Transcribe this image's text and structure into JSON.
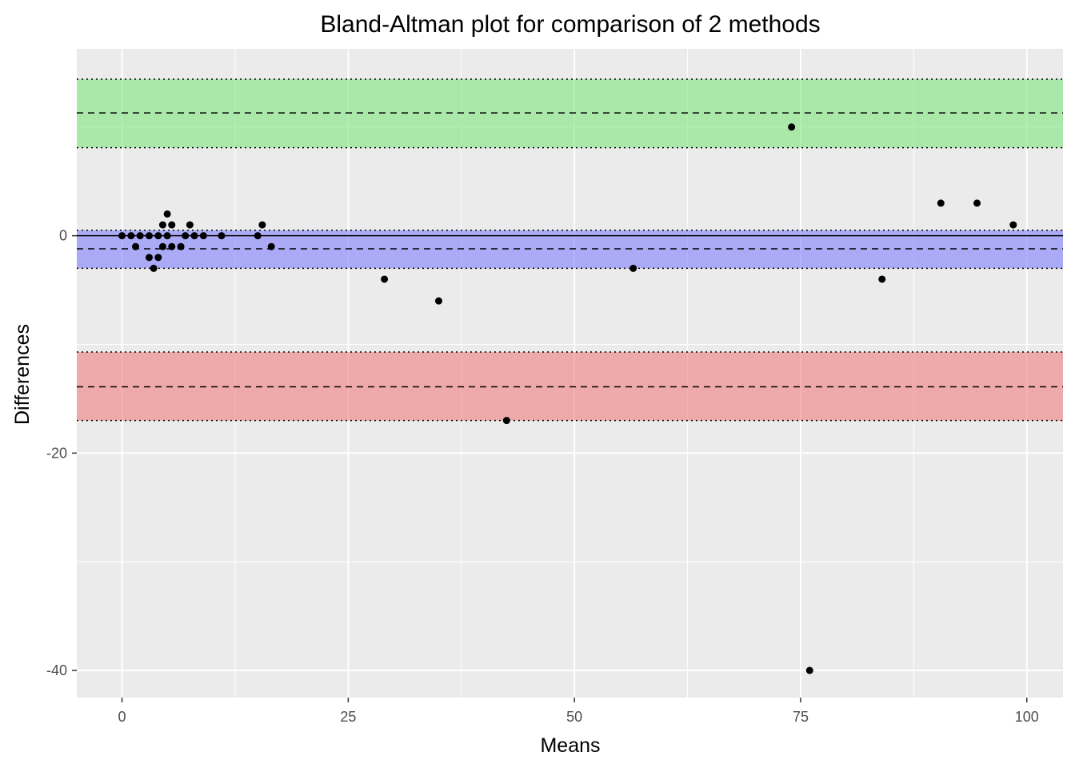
{
  "chart_data": {
    "type": "scatter",
    "title": "Bland-Altman plot for comparison of 2 methods",
    "xlabel": "Means",
    "ylabel": "Differences",
    "xlim": [
      -5,
      104
    ],
    "ylim": [
      -42.5,
      17.2
    ],
    "x_ticks": [
      0,
      25,
      50,
      75,
      100
    ],
    "x_tick_labels": [
      "0",
      "25",
      "50",
      "75",
      "100"
    ],
    "y_ticks": [
      -40,
      -20,
      0
    ],
    "y_tick_labels": [
      "-40",
      "-20",
      "0"
    ],
    "grid": true,
    "legend": "none",
    "zero_line": 0,
    "bands": [
      {
        "type": "upper-limit-of-agreement-ci",
        "low": 8.1,
        "high": 14.4,
        "center": 11.3,
        "color": "#7fe67f"
      },
      {
        "type": "bias-ci",
        "low": -3.0,
        "high": 0.5,
        "center": -1.2,
        "color": "#7f7fff"
      },
      {
        "type": "lower-limit-of-agreement-ci",
        "low": -17.0,
        "high": -10.7,
        "center": -13.9,
        "color": "#f07f7f"
      }
    ],
    "points": [
      {
        "x": 0,
        "y": 0
      },
      {
        "x": 1,
        "y": 0
      },
      {
        "x": 1.5,
        "y": -1
      },
      {
        "x": 2,
        "y": 0
      },
      {
        "x": 3,
        "y": 0
      },
      {
        "x": 3,
        "y": -2
      },
      {
        "x": 3.5,
        "y": -3
      },
      {
        "x": 4,
        "y": 0
      },
      {
        "x": 4,
        "y": -2
      },
      {
        "x": 4.5,
        "y": 1
      },
      {
        "x": 4.5,
        "y": -1
      },
      {
        "x": 5,
        "y": 2
      },
      {
        "x": 5,
        "y": 0
      },
      {
        "x": 5.5,
        "y": 1
      },
      {
        "x": 5.5,
        "y": -1
      },
      {
        "x": 6.5,
        "y": -1
      },
      {
        "x": 7,
        "y": 0
      },
      {
        "x": 7.5,
        "y": 1
      },
      {
        "x": 8,
        "y": 0
      },
      {
        "x": 9,
        "y": 0
      },
      {
        "x": 11,
        "y": 0
      },
      {
        "x": 15,
        "y": 0
      },
      {
        "x": 15.5,
        "y": 1
      },
      {
        "x": 16.5,
        "y": -1
      },
      {
        "x": 29,
        "y": -4
      },
      {
        "x": 35,
        "y": -6
      },
      {
        "x": 42.5,
        "y": -17
      },
      {
        "x": 56.5,
        "y": -3
      },
      {
        "x": 74,
        "y": 10
      },
      {
        "x": 76,
        "y": -40
      },
      {
        "x": 84,
        "y": -4
      },
      {
        "x": 90.5,
        "y": 3
      },
      {
        "x": 94.5,
        "y": 3
      },
      {
        "x": 98.5,
        "y": 1
      }
    ],
    "point_color": "#000000"
  }
}
